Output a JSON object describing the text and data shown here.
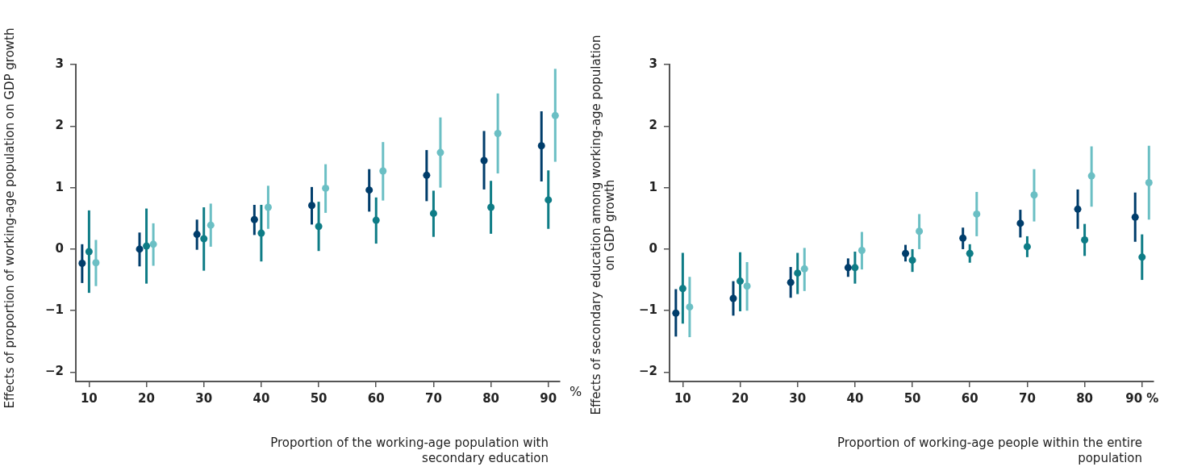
{
  "chart_data": [
    {
      "type": "scatter",
      "ylabel": "Effects of proportion of working-age population on GDP growth",
      "xlabel": "Proportion of the working-age population with secondary education",
      "xlim": [
        7.7,
        92
      ],
      "xticks": [
        10,
        20,
        30,
        40,
        50,
        60,
        70,
        80,
        90
      ],
      "ylim": [
        -2.15,
        3
      ],
      "yticks": [
        -2,
        -1,
        0,
        1,
        2,
        3
      ],
      "marker": "circle",
      "annotations": [
        "%"
      ],
      "series": [
        {
          "color": "#003d6b",
          "x": [
            8.8,
            18.8,
            28.8,
            38.8,
            48.8,
            58.8,
            68.8,
            78.8,
            88.8
          ],
          "values": [
            -0.23,
            0.0,
            0.24,
            0.48,
            0.71,
            0.96,
            1.2,
            1.44,
            1.68
          ],
          "errors": [
            [
              -0.55,
              0.08
            ],
            [
              -0.28,
              0.27
            ],
            [
              -0.01,
              0.48
            ],
            [
              0.23,
              0.72
            ],
            [
              0.4,
              1.01
            ],
            [
              0.61,
              1.3
            ],
            [
              0.78,
              1.61
            ],
            [
              0.97,
              1.92
            ],
            [
              1.1,
              2.24
            ]
          ]
        },
        {
          "color": "#0e7c86",
          "x": [
            10,
            20,
            30,
            40,
            50,
            60,
            70,
            80,
            90
          ],
          "values": [
            -0.04,
            0.05,
            0.17,
            0.26,
            0.37,
            0.47,
            0.58,
            0.68,
            0.8
          ],
          "errors": [
            [
              -0.71,
              0.63
            ],
            [
              -0.56,
              0.66
            ],
            [
              -0.35,
              0.68
            ],
            [
              -0.2,
              0.72
            ],
            [
              -0.03,
              0.77
            ],
            [
              0.09,
              0.84
            ],
            [
              0.2,
              0.95
            ],
            [
              0.25,
              1.11
            ],
            [
              0.33,
              1.28
            ]
          ]
        },
        {
          "color": "#6bbfc4",
          "x": [
            11.2,
            21.2,
            31.2,
            41.2,
            51.2,
            61.2,
            71.2,
            81.2,
            91.2
          ],
          "values": [
            -0.22,
            0.08,
            0.39,
            0.68,
            0.99,
            1.27,
            1.57,
            1.88,
            2.17
          ],
          "errors": [
            [
              -0.6,
              0.15
            ],
            [
              -0.27,
              0.42
            ],
            [
              0.04,
              0.74
            ],
            [
              0.33,
              1.03
            ],
            [
              0.59,
              1.38
            ],
            [
              0.79,
              1.74
            ],
            [
              1.0,
              2.14
            ],
            [
              1.23,
              2.53
            ],
            [
              1.42,
              2.93
            ]
          ]
        }
      ]
    },
    {
      "type": "scatter",
      "ylabel": "Effects of secondary education among working-age population on GDP growth",
      "xlabel": "Proportion of working-age people within the entire population",
      "xlim": [
        7.7,
        92
      ],
      "xticks": [
        10,
        20,
        30,
        40,
        50,
        60,
        70,
        80,
        {
          "value": 90,
          "label": "90 %"
        }
      ],
      "ylim": [
        -2.15,
        3
      ],
      "yticks": [
        -2,
        -1,
        0,
        1,
        2,
        3
      ],
      "marker": "circle",
      "series": [
        {
          "color": "#003d6b",
          "x": [
            8.8,
            18.8,
            28.8,
            38.8,
            48.8,
            58.8,
            68.8,
            78.8,
            88.8
          ],
          "values": [
            -1.04,
            -0.8,
            -0.54,
            -0.3,
            -0.07,
            0.18,
            0.42,
            0.65,
            0.52
          ],
          "errors": [
            [
              -1.42,
              -0.65
            ],
            [
              -1.08,
              -0.52
            ],
            [
              -0.79,
              -0.29
            ],
            [
              -0.45,
              -0.15
            ],
            [
              -0.2,
              0.07
            ],
            [
              0.0,
              0.35
            ],
            [
              0.19,
              0.64
            ],
            [
              0.33,
              0.97
            ],
            [
              0.12,
              0.92
            ]
          ]
        },
        {
          "color": "#0e7c86",
          "x": [
            10,
            20,
            30,
            40,
            50,
            60,
            70,
            80,
            90
          ],
          "values": [
            -0.64,
            -0.52,
            -0.39,
            -0.3,
            -0.18,
            -0.07,
            0.04,
            0.15,
            -0.13
          ],
          "errors": [
            [
              -1.21,
              -0.06
            ],
            [
              -1.01,
              -0.05
            ],
            [
              -0.73,
              -0.06
            ],
            [
              -0.56,
              -0.04
            ],
            [
              -0.37,
              0.0
            ],
            [
              -0.22,
              0.08
            ],
            [
              -0.13,
              0.21
            ],
            [
              -0.11,
              0.41
            ],
            [
              -0.5,
              0.24
            ]
          ]
        },
        {
          "color": "#6bbfc4",
          "x": [
            11.2,
            21.2,
            31.2,
            41.2,
            51.2,
            61.2,
            71.2,
            81.2,
            91.2
          ],
          "values": [
            -0.94,
            -0.6,
            -0.32,
            -0.02,
            0.29,
            0.57,
            0.88,
            1.19,
            1.08
          ],
          "errors": [
            [
              -1.43,
              -0.45
            ],
            [
              -1.0,
              -0.21
            ],
            [
              -0.68,
              0.02
            ],
            [
              -0.33,
              0.28
            ],
            [
              0.0,
              0.57
            ],
            [
              0.21,
              0.93
            ],
            [
              0.45,
              1.3
            ],
            [
              0.69,
              1.67
            ],
            [
              0.48,
              1.68
            ]
          ]
        }
      ]
    }
  ]
}
